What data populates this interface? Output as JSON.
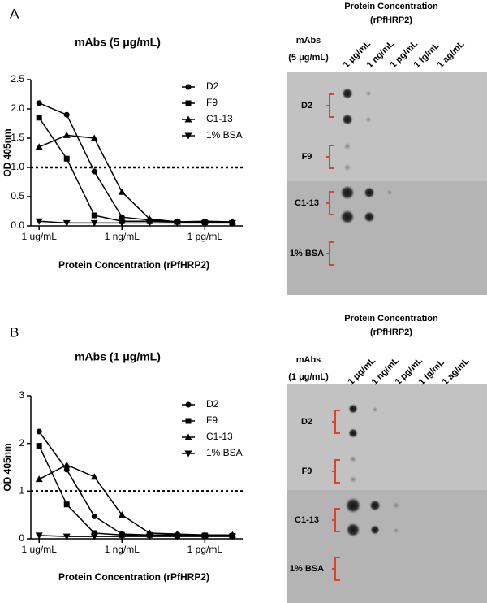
{
  "chart_data": [
    {
      "type": "line",
      "panel": "A",
      "title": "mAbs (5 μg/mL)",
      "ylabel": "OD 405nm",
      "xlabel": "Protein Concentration (rPfHRP2)",
      "x": [
        0,
        1,
        2,
        3,
        4,
        5,
        6,
        7
      ],
      "xlim": [
        -0.3,
        7.4
      ],
      "xticks": [
        {
          "value": 0,
          "label": "1 ug/mL"
        },
        {
          "value": 3,
          "label": "1 ng/mL"
        },
        {
          "value": 6,
          "label": "1 pg/mL"
        }
      ],
      "ylim": [
        0,
        2.5
      ],
      "yticks": [
        {
          "value": 0,
          "label": "0.0"
        },
        0.5,
        {
          "value": 1,
          "label": "1.0"
        },
        1.5,
        {
          "value": 2,
          "label": "2.0"
        },
        2.5
      ],
      "reference_line": 1,
      "series": [
        {
          "name": "D2",
          "marker": "circle",
          "color": "#000",
          "values": [
            2.1,
            1.9,
            0.93,
            0.15,
            0.1,
            0.07,
            0.07,
            0.06
          ]
        },
        {
          "name": "F9",
          "marker": "square",
          "color": "#000",
          "values": [
            1.85,
            1.15,
            0.18,
            0.08,
            0.08,
            0.07,
            0.06,
            0.05
          ]
        },
        {
          "name": "C1-13",
          "marker": "triangle-up",
          "color": "#000",
          "values": [
            1.35,
            1.55,
            1.5,
            0.58,
            0.12,
            0.07,
            0.08,
            0.07
          ]
        },
        {
          "name": "1% BSA",
          "marker": "triangle-down",
          "color": "#000",
          "values": [
            0.08,
            0.05,
            0.05,
            0.05,
            0.05,
            0.05,
            0.05,
            0.05
          ]
        }
      ]
    },
    {
      "type": "line",
      "panel": "B",
      "title": "mAbs (1 μg/mL)",
      "ylabel": "OD 405nm",
      "xlabel": "Protein Concentration (rPfHRP2)",
      "x": [
        0,
        1,
        2,
        3,
        4,
        5,
        6,
        7
      ],
      "xlim": [
        -0.3,
        7.4
      ],
      "xticks": [
        {
          "value": 0,
          "label": "1 ug/mL"
        },
        {
          "value": 3,
          "label": "1 ng/mL"
        },
        {
          "value": 6,
          "label": "1 pg/mL"
        }
      ],
      "ylim": [
        0,
        3
      ],
      "yticks": [
        0,
        1,
        2,
        3
      ],
      "reference_line": 1,
      "series": [
        {
          "name": "D2",
          "marker": "circle",
          "color": "#000",
          "values": [
            2.25,
            1.45,
            0.47,
            0.1,
            0.08,
            0.08,
            0.07,
            0.07
          ]
        },
        {
          "name": "F9",
          "marker": "square",
          "color": "#000",
          "values": [
            1.95,
            0.72,
            0.12,
            0.08,
            0.08,
            0.07,
            0.07,
            0.06
          ]
        },
        {
          "name": "C1-13",
          "marker": "triangle-up",
          "color": "#000",
          "values": [
            1.25,
            1.55,
            1.3,
            0.5,
            0.12,
            0.1,
            0.08,
            0.08
          ]
        },
        {
          "name": "1% BSA",
          "marker": "triangle-down",
          "color": "#000",
          "values": [
            0.07,
            0.05,
            0.05,
            0.05,
            0.05,
            0.05,
            0.05,
            0.05
          ]
        }
      ]
    }
  ],
  "blots": [
    {
      "title": [
        "Protein Concentration",
        "(rPfHRP2)"
      ],
      "row_header": [
        "mAbs",
        "(5 μg/mL)"
      ],
      "columns": [
        "1 μg/mL",
        "1 ng/mL",
        "1 pg/mL",
        "1 fg/mL",
        "1 ag/mL"
      ],
      "rows": [
        "D2",
        "F9",
        "C1-13",
        "1% BSA"
      ]
    },
    {
      "title": [
        "Protein Concentration",
        "(rPfHRP2)"
      ],
      "row_header": [
        "mAbs",
        "(1 μg/mL)"
      ],
      "columns": [
        "1 μg/mL",
        "1 ng/mL",
        "1 pg/mL",
        "1 fg/mL",
        "1 ag/mL"
      ],
      "rows": [
        "D2",
        "F9",
        "C1-13",
        "1% BSA"
      ]
    }
  ]
}
